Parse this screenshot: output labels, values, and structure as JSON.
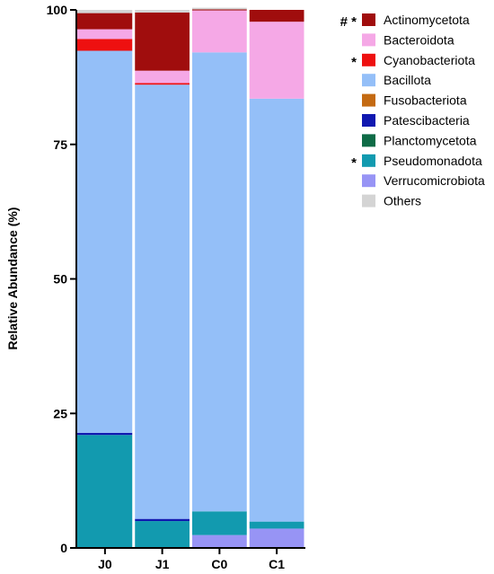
{
  "chart_data": {
    "type": "bar",
    "stacked": true,
    "title": "",
    "xlabel": "",
    "ylabel": "Relative Abundance (%)",
    "ylim": [
      0,
      100
    ],
    "yticks": [
      0,
      25,
      50,
      75,
      100
    ],
    "categories": [
      "J0",
      "J1",
      "C0",
      "C1"
    ],
    "grid": false,
    "legend_position": "right",
    "series": [
      {
        "name": "Verrucomicrobiota",
        "color": "#9794F5",
        "values": [
          0,
          0,
          2.4,
          3.6
        ]
      },
      {
        "name": "Pseudomonadota",
        "color": "#129AAF",
        "values": [
          21.0,
          5.0,
          4.4,
          1.3
        ]
      },
      {
        "name": "Planctomycetota",
        "color": "#0E6B46",
        "values": [
          0,
          0,
          0,
          0
        ]
      },
      {
        "name": "Patescibacteria",
        "color": "#1018B0",
        "values": [
          0.4,
          0.4,
          0,
          0
        ]
      },
      {
        "name": "Fusobacteriota",
        "color": "#C46A12",
        "values": [
          0,
          0,
          0,
          0
        ]
      },
      {
        "name": "Bacillota",
        "color": "#94BFF8",
        "values": [
          71.0,
          80.7,
          85.3,
          78.6
        ]
      },
      {
        "name": "Cyanobacteriota",
        "color": "#EE1010",
        "values": [
          2.2,
          0.3,
          0,
          0
        ]
      },
      {
        "name": "Bacteroidota",
        "color": "#F5A8E6",
        "values": [
          1.8,
          2.3,
          7.8,
          14.3
        ]
      },
      {
        "name": "Actinomycetota",
        "color": "#A00D0D",
        "values": [
          3.0,
          10.8,
          0.2,
          2.2
        ]
      },
      {
        "name": "Others",
        "color": "#D4D4D4",
        "values": [
          0.6,
          0.5,
          0.3,
          0
        ]
      }
    ],
    "legend": [
      {
        "label": "Actinomycetota",
        "color": "#A00D0D",
        "mark": "# *"
      },
      {
        "label": "Bacteroidota",
        "color": "#F5A8E6",
        "mark": ""
      },
      {
        "label": "Cyanobacteriota",
        "color": "#EE1010",
        "mark": "*"
      },
      {
        "label": "Bacillota",
        "color": "#94BFF8",
        "mark": ""
      },
      {
        "label": "Fusobacteriota",
        "color": "#C46A12",
        "mark": ""
      },
      {
        "label": "Patescibacteria",
        "color": "#1018B0",
        "mark": ""
      },
      {
        "label": "Planctomycetota",
        "color": "#0E6B46",
        "mark": ""
      },
      {
        "label": "Pseudomonadota",
        "color": "#129AAF",
        "mark": "*"
      },
      {
        "label": "Verrucomicrobiota",
        "color": "#9794F5",
        "mark": ""
      },
      {
        "label": "Others",
        "color": "#D4D4D4",
        "mark": ""
      }
    ]
  }
}
